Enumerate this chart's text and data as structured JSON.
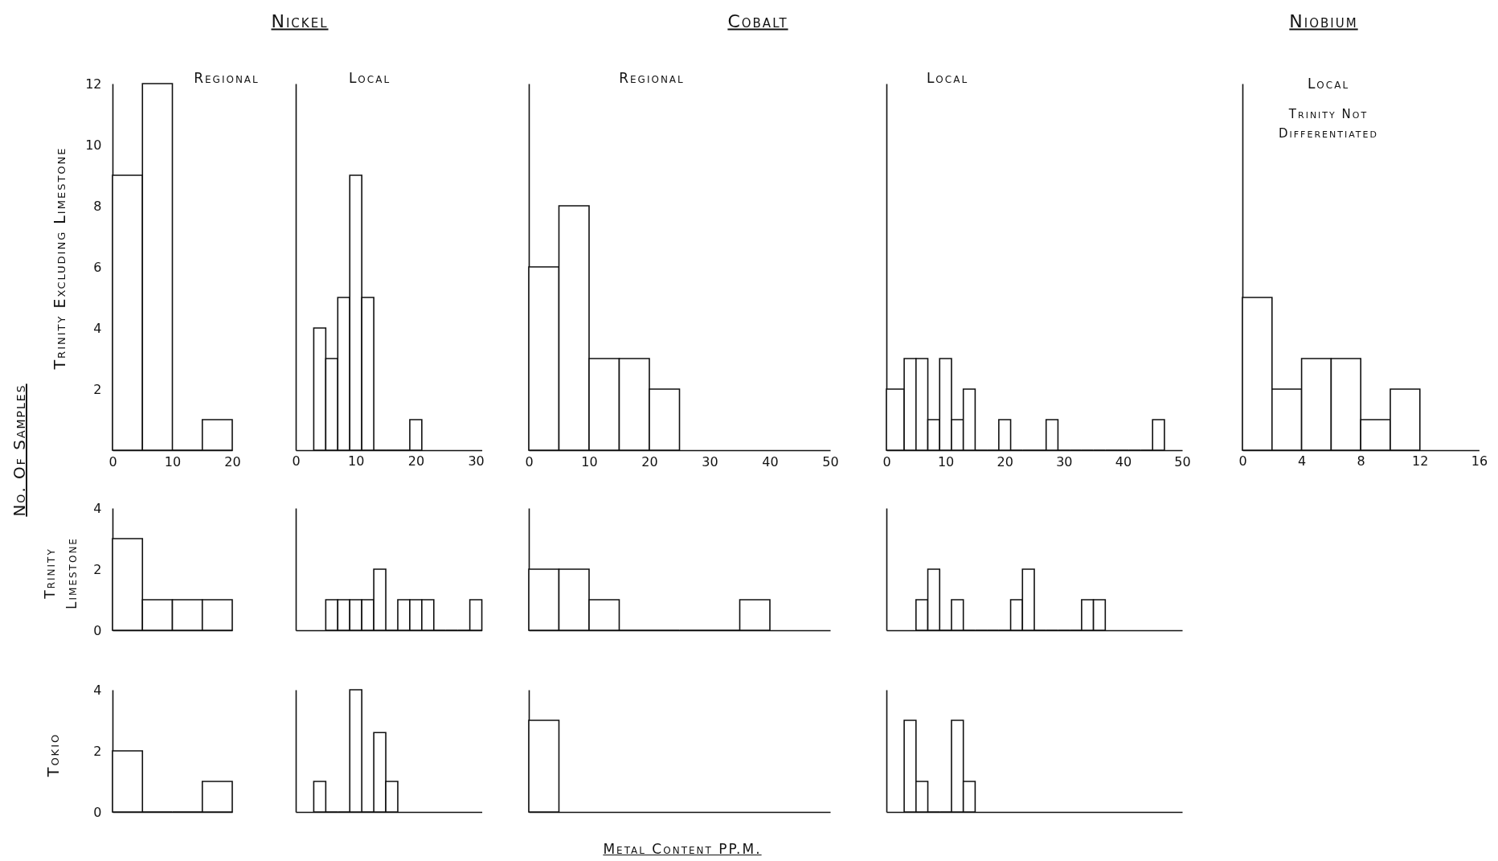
{
  "chart_data": [
    {
      "type": "histogram",
      "subtitle": "Regional",
      "ylabel": "Trinity Excluding Limestone",
      "bins": [
        0,
        5,
        10,
        15,
        20
      ],
      "values": [
        9,
        12,
        0,
        1
      ],
      "xlim": [
        0,
        20
      ],
      "xticks": [
        0,
        10,
        20
      ],
      "ylim": [
        0,
        12
      ],
      "yticks": [
        2,
        4,
        6,
        8,
        10,
        12
      ]
    },
    {
      "type": "histogram",
      "title": "Nickel",
      "subtitle": "Local",
      "bins": [
        3,
        5,
        7,
        9,
        11,
        13,
        15,
        17,
        19,
        21
      ],
      "values": [
        4,
        3,
        5,
        9,
        5,
        0,
        0,
        0,
        1
      ],
      "xlim": [
        0,
        31
      ],
      "xticks": [
        0,
        10,
        20,
        30
      ],
      "ylim": [
        0,
        12
      ],
      "tick_labels": "x"
    },
    {
      "type": "histogram",
      "title": "Cobalt",
      "subtitle": "Regional",
      "bins": [
        0,
        5,
        10,
        15,
        20,
        25
      ],
      "values": [
        6,
        8,
        3,
        3,
        2
      ],
      "xlim": [
        0,
        50
      ],
      "xticks": [
        0,
        10,
        20,
        30,
        40,
        50
      ],
      "ylim": [
        0,
        12
      ],
      "tick_labels": "x"
    },
    {
      "type": "histogram",
      "subtitle": "Local",
      "bins": [
        0,
        3,
        5,
        7,
        9,
        11,
        13,
        15,
        17,
        19,
        21,
        23,
        25,
        27,
        29,
        31,
        33,
        35,
        37,
        39,
        41,
        43,
        45,
        47
      ],
      "values": [
        2,
        3,
        3,
        1,
        3,
        1,
        2,
        0,
        0,
        1,
        0,
        0,
        0,
        1,
        0,
        0,
        0,
        0,
        0,
        0,
        0,
        0,
        1
      ],
      "xlim": [
        0,
        50
      ],
      "xticks": [
        0,
        10,
        20,
        30,
        40,
        50
      ],
      "ylim": [
        0,
        12
      ],
      "tick_labels": "x"
    },
    {
      "type": "histogram",
      "title": "Niobium",
      "subtitle": "Local",
      "annotations": [
        "Trinity Not Differentiated"
      ],
      "bins": [
        0,
        2,
        4,
        6,
        8,
        10,
        12
      ],
      "values": [
        5,
        2,
        3,
        3,
        1,
        2
      ],
      "xlim": [
        0,
        16
      ],
      "xticks": [
        0,
        4,
        8,
        12,
        16
      ],
      "ylim": [
        0,
        12
      ],
      "tick_labels": "x"
    },
    {
      "type": "histogram",
      "ylabel": "Trinity Limestone",
      "annotations": [
        "No. Of Samples"
      ],
      "bins": [
        0,
        5,
        10,
        15,
        20
      ],
      "values": [
        3,
        1,
        1,
        1
      ],
      "xlim": [
        0,
        20
      ],
      "ylim": [
        0,
        4
      ],
      "yticks": [
        0,
        2,
        4
      ],
      "tick_labels": "y"
    },
    {
      "type": "histogram",
      "bins": [
        5,
        7,
        9,
        11,
        13,
        15,
        17,
        19,
        21,
        23,
        25,
        27,
        29,
        31
      ],
      "values": [
        1,
        1,
        1,
        1,
        2,
        0,
        1,
        1,
        1,
        0,
        0,
        0,
        1
      ],
      "xlim": [
        0,
        31
      ],
      "ylim": [
        0,
        4
      ],
      "tick_labels": false
    },
    {
      "type": "histogram",
      "bins": [
        0,
        5,
        10,
        15,
        20,
        25,
        30,
        35,
        40
      ],
      "values": [
        2,
        2,
        1,
        0,
        0,
        0,
        0,
        1
      ],
      "xlim": [
        0,
        50
      ],
      "ylim": [
        0,
        4
      ],
      "tick_labels": false
    },
    {
      "type": "histogram",
      "bins": [
        5,
        7,
        9,
        11,
        13,
        15,
        17,
        19,
        21,
        23,
        25,
        27,
        29,
        31,
        33,
        35,
        37
      ],
      "values": [
        1,
        2,
        0,
        1,
        0,
        0,
        0,
        0,
        1,
        2,
        0,
        0,
        0,
        0,
        1,
        1
      ],
      "xlim": [
        0,
        50
      ],
      "ylim": [
        0,
        4
      ],
      "tick_labels": false
    },
    {
      "type": "histogram",
      "ylabel": "Tokio",
      "bins": [
        0,
        5,
        10,
        15,
        20
      ],
      "values": [
        2,
        0,
        0,
        1
      ],
      "xlim": [
        0,
        20
      ],
      "ylim": [
        0,
        4
      ],
      "yticks": [
        0,
        2,
        4
      ],
      "tick_labels": "y"
    },
    {
      "type": "histogram",
      "bins": [
        3,
        5,
        7,
        9,
        11,
        13,
        15,
        17
      ],
      "values": [
        1,
        0,
        0,
        4,
        0,
        2.6,
        1
      ],
      "xlim": [
        0,
        31
      ],
      "ylim": [
        0,
        4
      ],
      "tick_labels": false
    },
    {
      "type": "histogram",
      "xlabel": "Metal Content PP.M.",
      "bins": [
        0,
        5
      ],
      "values": [
        3
      ],
      "xlim": [
        0,
        50
      ],
      "ylim": [
        0,
        4
      ],
      "tick_labels": false
    },
    {
      "type": "histogram",
      "bins": [
        3,
        5,
        7,
        9,
        11,
        13,
        15
      ],
      "values": [
        3,
        1,
        0,
        0,
        3,
        1
      ],
      "xlim": [
        0,
        50
      ],
      "ylim": [
        0,
        4
      ],
      "tick_labels": false
    }
  ]
}
